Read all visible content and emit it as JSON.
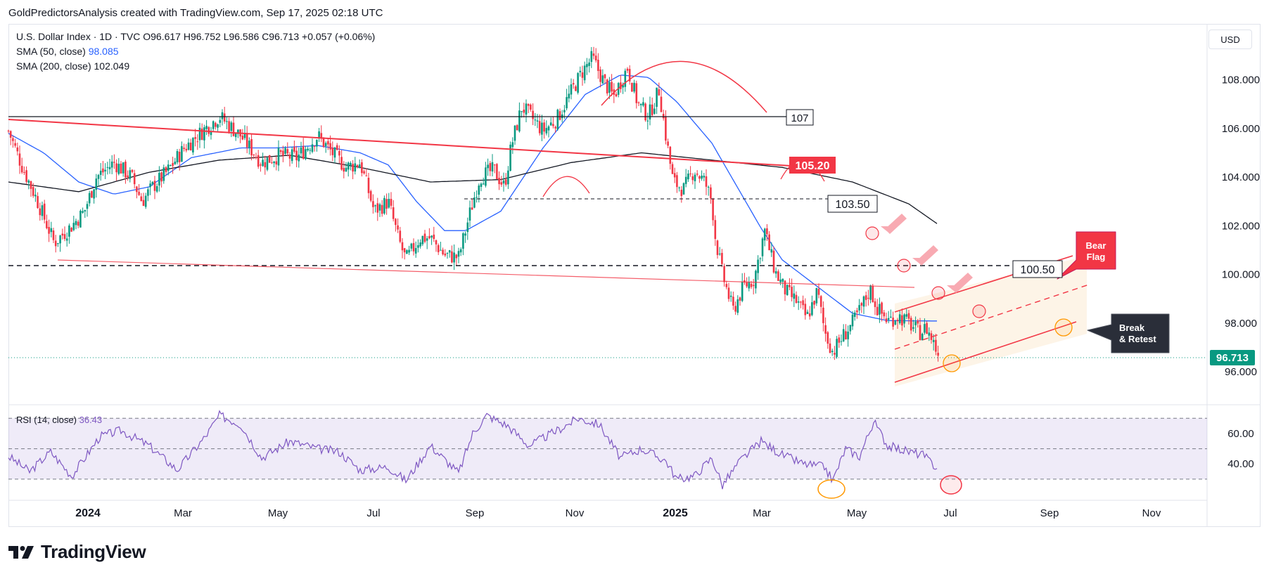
{
  "header": {
    "caption": "GoldPredictorsAnalysis created with TradingView.com, Sep 17, 2025 02:18 UTC",
    "currency": "USD"
  },
  "legend": {
    "symbol": "U.S. Dollar Index · 1D · TVC",
    "open": "O96.617",
    "high": "H96.752",
    "low": "L96.586",
    "close": "C96.713",
    "change": "+0.057 (+0.06%)",
    "sma50_label": "SMA (50, close)",
    "sma50_value": "98.085",
    "sma200_label": "SMA (200, close)",
    "sma200_value": "102.049",
    "rsi_label": "RSI (14, close)",
    "rsi_value": "36.43"
  },
  "chart_data": [
    {
      "type": "candlestick",
      "y_ticks": [
        "108.000",
        "106.000",
        "104.000",
        "102.000",
        "100.000",
        "98.000",
        "96.000"
      ],
      "x_ticks": [
        "2024",
        "Mar",
        "May",
        "Jul",
        "Sep",
        "Nov",
        "2025",
        "Mar",
        "May",
        "Jul",
        "Sep",
        "Nov"
      ],
      "ylim": [
        94.7,
        110.3
      ],
      "last_price": "96.713",
      "series": [
        {
          "name": "U.S. Dollar Index",
          "color": "#089981",
          "down_color": "#f23645",
          "anchors": [
            [
              0,
              105.9
            ],
            [
              20,
              104.4
            ],
            [
              40,
              103.1
            ],
            [
              65,
              101.3
            ],
            [
              90,
              102.0
            ],
            [
              108,
              102.6
            ],
            [
              125,
              104.0
            ],
            [
              150,
              104.6
            ],
            [
              175,
              104.0
            ],
            [
              190,
              103.0
            ],
            [
              205,
              103.6
            ],
            [
              225,
              104.2
            ],
            [
              250,
              105.2
            ],
            [
              280,
              106.0
            ],
            [
              300,
              106.5
            ],
            [
              330,
              105.7
            ],
            [
              360,
              104.6
            ],
            [
              385,
              104.9
            ],
            [
              410,
              104.8
            ],
            [
              440,
              105.7
            ],
            [
              460,
              105.0
            ],
            [
              480,
              104.4
            ],
            [
              500,
              104.6
            ],
            [
              520,
              102.6
            ],
            [
              540,
              103.0
            ],
            [
              555,
              101.4
            ],
            [
              565,
              100.6
            ],
            [
              585,
              101.5
            ],
            [
              600,
              101.5
            ],
            [
              620,
              100.8
            ],
            [
              640,
              100.7
            ],
            [
              655,
              102.4
            ],
            [
              670,
              104.0
            ],
            [
              690,
              104.3
            ],
            [
              705,
              103.6
            ],
            [
              715,
              105.3
            ],
            [
              730,
              106.9
            ],
            [
              745,
              106.4
            ],
            [
              760,
              105.9
            ],
            [
              780,
              106.4
            ],
            [
              800,
              107.5
            ],
            [
              815,
              108.3
            ],
            [
              830,
              108.9
            ],
            [
              845,
              108.0
            ],
            [
              860,
              107.3
            ],
            [
              880,
              108.5
            ],
            [
              895,
              107.0
            ],
            [
              910,
              106.5
            ],
            [
              925,
              107.6
            ],
            [
              935,
              105.6
            ],
            [
              945,
              103.8
            ],
            [
              960,
              103.5
            ],
            [
              975,
              104.3
            ],
            [
              990,
              103.8
            ],
            [
              1000,
              103.0
            ],
            [
              1005,
              101.5
            ],
            [
              1015,
              100.0
            ],
            [
              1030,
              98.5
            ],
            [
              1045,
              99.5
            ],
            [
              1060,
              99.8
            ],
            [
              1075,
              101.8
            ],
            [
              1090,
              100.1
            ],
            [
              1105,
              99.3
            ],
            [
              1120,
              98.9
            ],
            [
              1135,
              98.2
            ],
            [
              1150,
              99.3
            ],
            [
              1160,
              97.7
            ],
            [
              1172,
              96.8
            ],
            [
              1185,
              97.4
            ],
            [
              1200,
              98.0
            ],
            [
              1212,
              98.6
            ],
            [
              1225,
              99.4
            ],
            [
              1235,
              98.6
            ],
            [
              1250,
              98.1
            ],
            [
              1265,
              98.3
            ],
            [
              1280,
              98.0
            ],
            [
              1295,
              97.6
            ],
            [
              1305,
              97.8
            ],
            [
              1315,
              97.2
            ],
            [
              1322,
              96.71
            ]
          ]
        },
        {
          "name": "SMA (50, close)",
          "color": "#2962ff",
          "anchors": [
            [
              0,
              105.8
            ],
            [
              50,
              105.0
            ],
            [
              100,
              103.8
            ],
            [
              150,
              103.3
            ],
            [
              200,
              103.6
            ],
            [
              260,
              104.8
            ],
            [
              330,
              105.2
            ],
            [
              380,
              105.2
            ],
            [
              440,
              105.3
            ],
            [
              500,
              105.0
            ],
            [
              540,
              104.5
            ],
            [
              580,
              103.0
            ],
            [
              620,
              101.8
            ],
            [
              650,
              101.8
            ],
            [
              700,
              102.6
            ],
            [
              760,
              105.2
            ],
            [
              820,
              107.4
            ],
            [
              870,
              108.2
            ],
            [
              910,
              108.1
            ],
            [
              950,
              107.1
            ],
            [
              1000,
              105.4
            ],
            [
              1040,
              103.4
            ],
            [
              1070,
              101.9
            ],
            [
              1100,
              100.6
            ],
            [
              1150,
              99.5
            ],
            [
              1200,
              98.4
            ],
            [
              1250,
              98.1
            ],
            [
              1320,
              98.085
            ]
          ]
        },
        {
          "name": "SMA (200, close)",
          "color": "#131722",
          "anchors": [
            [
              0,
              103.8
            ],
            [
              100,
              103.4
            ],
            [
              200,
              104.2
            ],
            [
              300,
              104.7
            ],
            [
              400,
              104.9
            ],
            [
              500,
              104.4
            ],
            [
              600,
              103.8
            ],
            [
              700,
              103.9
            ],
            [
              800,
              104.6
            ],
            [
              900,
              105.0
            ],
            [
              1000,
              104.7
            ],
            [
              1100,
              104.4
            ],
            [
              1200,
              103.8
            ],
            [
              1280,
              102.9
            ],
            [
              1322,
              102.049
            ]
          ]
        }
      ]
    },
    {
      "type": "line",
      "ylabel": "RSI (14, close)",
      "y_ticks": [
        "60.00",
        "40.00"
      ],
      "ylim": [
        17,
        78
      ],
      "bands": [
        70,
        50,
        30
      ],
      "series": [
        {
          "name": "RSI (14, close)",
          "color": "#7e57c2",
          "anchors": [
            [
              0,
              45
            ],
            [
              30,
              35
            ],
            [
              60,
              48
            ],
            [
              90,
              32
            ],
            [
              130,
              58
            ],
            [
              160,
              62
            ],
            [
              200,
              52
            ],
            [
              240,
              36
            ],
            [
              280,
              58
            ],
            [
              300,
              72
            ],
            [
              330,
              66
            ],
            [
              360,
              44
            ],
            [
              400,
              55
            ],
            [
              440,
              50
            ],
            [
              470,
              48
            ],
            [
              500,
              36
            ],
            [
              540,
              38
            ],
            [
              565,
              29
            ],
            [
              600,
              52
            ],
            [
              640,
              34
            ],
            [
              660,
              60
            ],
            [
              680,
              72
            ],
            [
              710,
              65
            ],
            [
              740,
              52
            ],
            [
              780,
              62
            ],
            [
              810,
              70
            ],
            [
              840,
              66
            ],
            [
              870,
              44
            ],
            [
              900,
              50
            ],
            [
              935,
              42
            ],
            [
              950,
              30
            ],
            [
              975,
              32
            ],
            [
              1000,
              44
            ],
            [
              1015,
              26
            ],
            [
              1040,
              42
            ],
            [
              1070,
              55
            ],
            [
              1100,
              46
            ],
            [
              1130,
              40
            ],
            [
              1160,
              38
            ],
            [
              1172,
              29
            ],
            [
              1190,
              50
            ],
            [
              1210,
              45
            ],
            [
              1230,
              68
            ],
            [
              1250,
              52
            ],
            [
              1280,
              48
            ],
            [
              1300,
              46
            ],
            [
              1322,
              36.43
            ]
          ]
        }
      ]
    }
  ],
  "annotations": {
    "level_107": "107",
    "level_105": "105.20",
    "level_103": "103.50",
    "level_100": "100.50",
    "bear_flag_line1": "Bear",
    "bear_flag_line2": "Flag",
    "break_retest_line1": "Break",
    "break_retest_line2": "& Retest"
  },
  "footer": {
    "brand": "TradingView"
  },
  "colors": {
    "up": "#089981",
    "down": "#f23645",
    "sma50": "#2962ff",
    "sma200": "#131722",
    "rsi": "#7e57c2",
    "annotation_red": "#f23645",
    "callout_dark": "#2a2e39"
  }
}
